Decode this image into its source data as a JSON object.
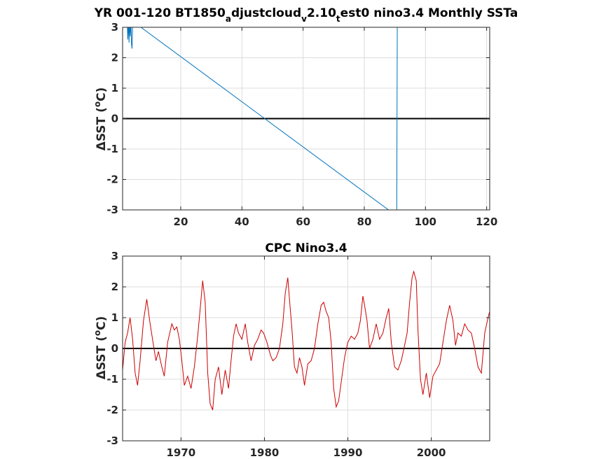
{
  "chart_data": [
    {
      "type": "line",
      "title_parts": [
        "YR 001-120 BT1850",
        "a",
        "djustcloud",
        "v",
        "2.10",
        "t",
        "est0 nino3.4 Monthly SSTa"
      ],
      "ylabel_parts": [
        "ΔSST (",
        "o",
        "C)"
      ],
      "xlim": [
        1,
        121
      ],
      "ylim": [
        -3,
        3
      ],
      "xticks": [
        20,
        40,
        60,
        80,
        100,
        120
      ],
      "yticks": [
        -3,
        -2,
        -1,
        0,
        1,
        2,
        3
      ],
      "grid": true,
      "zero_line": true,
      "series": [
        {
          "color": "#0072bd",
          "x": [
            2.5,
            2.7,
            2.9,
            3.1,
            3.3,
            3.5,
            3.7,
            3.9,
            4.1,
            4.3,
            90.6,
            90.8
          ],
          "y": [
            3.2,
            2.6,
            3.2,
            2.5,
            3.2,
            2.7,
            3.2,
            2.45,
            2.3,
            3.2,
            -3.2,
            3.2
          ]
        }
      ]
    },
    {
      "type": "line",
      "title": "CPC Nino3.4",
      "ylabel_parts": [
        "ΔSST (",
        "o",
        "C)"
      ],
      "xlim": [
        1963,
        2007
      ],
      "ylim": [
        -3,
        3
      ],
      "xticks": [
        1970,
        1980,
        1990,
        2000
      ],
      "yticks": [
        -3,
        -2,
        -1,
        0,
        1,
        2,
        3
      ],
      "grid": true,
      "zero_line": true,
      "series": [
        {
          "color": "#cc0000",
          "x": [
            1963.0,
            1963.3,
            1963.6,
            1963.9,
            1964.2,
            1964.5,
            1964.8,
            1965.1,
            1965.5,
            1965.9,
            1966.3,
            1966.7,
            1967.0,
            1967.3,
            1967.7,
            1968.0,
            1968.4,
            1968.9,
            1969.2,
            1969.5,
            1969.8,
            1970.1,
            1970.4,
            1970.8,
            1971.2,
            1971.6,
            1972.0,
            1972.3,
            1972.6,
            1972.9,
            1973.2,
            1973.5,
            1973.8,
            1974.1,
            1974.5,
            1974.9,
            1975.3,
            1975.7,
            1976.0,
            1976.3,
            1976.6,
            1976.9,
            1977.3,
            1977.7,
            1978.0,
            1978.4,
            1978.8,
            1979.2,
            1979.6,
            1979.9,
            1980.3,
            1980.7,
            1981.0,
            1981.4,
            1981.8,
            1982.2,
            1982.5,
            1982.8,
            1983.0,
            1983.3,
            1983.6,
            1983.9,
            1984.2,
            1984.5,
            1984.8,
            1985.2,
            1985.6,
            1986.0,
            1986.4,
            1986.8,
            1987.1,
            1987.4,
            1987.7,
            1988.0,
            1988.3,
            1988.6,
            1988.9,
            1989.2,
            1989.6,
            1990.0,
            1990.4,
            1990.8,
            1991.2,
            1991.5,
            1991.8,
            1992.0,
            1992.3,
            1992.6,
            1993.0,
            1993.4,
            1993.8,
            1994.2,
            1994.6,
            1994.9,
            1995.2,
            1995.6,
            1996.0,
            1996.4,
            1996.8,
            1997.1,
            1997.4,
            1997.7,
            1997.9,
            1998.2,
            1998.4,
            1998.7,
            1999.0,
            1999.4,
            1999.8,
            2000.2,
            2000.6,
            2001.0,
            2001.4,
            2001.8,
            2002.2,
            2002.6,
            2002.9,
            2003.2,
            2003.6,
            2004.0,
            2004.4,
            2004.8,
            2005.2,
            2005.6,
            2006.0,
            2006.4,
            2006.8,
            2007.0
          ],
          "y": [
            -0.7,
            0.2,
            0.5,
            1.0,
            0.3,
            -0.8,
            -1.2,
            -0.4,
            0.9,
            1.6,
            0.8,
            0.1,
            -0.4,
            -0.1,
            -0.6,
            -0.9,
            0.2,
            0.8,
            0.6,
            0.7,
            0.3,
            -0.4,
            -1.2,
            -0.9,
            -1.3,
            -0.6,
            0.4,
            1.3,
            2.2,
            1.5,
            -0.8,
            -1.8,
            -2.0,
            -1.0,
            -0.6,
            -1.5,
            -0.7,
            -1.3,
            -0.4,
            0.4,
            0.8,
            0.5,
            0.3,
            0.8,
            0.2,
            -0.4,
            0.1,
            0.3,
            0.6,
            0.5,
            0.2,
            -0.2,
            -0.4,
            -0.3,
            0.0,
            0.8,
            1.8,
            2.3,
            1.6,
            0.6,
            -0.6,
            -0.8,
            -0.3,
            -0.6,
            -1.2,
            -0.5,
            -0.4,
            0.0,
            0.8,
            1.4,
            1.5,
            1.2,
            1.0,
            0.2,
            -1.3,
            -1.9,
            -1.7,
            -1.1,
            -0.3,
            0.2,
            0.4,
            0.3,
            0.5,
            0.9,
            1.7,
            1.4,
            0.9,
            0.0,
            0.3,
            0.8,
            0.3,
            0.5,
            1.0,
            1.3,
            0.2,
            -0.6,
            -0.7,
            -0.4,
            0.1,
            0.5,
            1.5,
            2.3,
            2.5,
            2.2,
            0.6,
            -1.0,
            -1.5,
            -0.8,
            -1.6,
            -0.9,
            -0.7,
            -0.5,
            0.2,
            0.9,
            1.4,
            0.9,
            0.1,
            0.5,
            0.4,
            0.8,
            0.6,
            0.5,
            0.0,
            -0.6,
            -0.8,
            0.5,
            1.0,
            1.2
          ]
        }
      ]
    }
  ]
}
